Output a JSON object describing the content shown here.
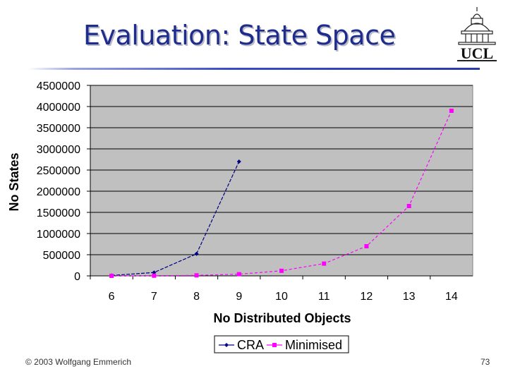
{
  "slide": {
    "title": "Evaluation: State Space",
    "footer_left": "© 2003 Wolfgang Emmerich",
    "page_number": "73",
    "logo_text": "UCL"
  },
  "colors": {
    "title": "#1e2d8c",
    "plot_bg": "#c0c0c0",
    "cra": "#000080",
    "minimised": "#ff00ff"
  },
  "chart_data": {
    "type": "line",
    "title": "",
    "xlabel": "No Distributed Objects",
    "ylabel": "No States",
    "categories": [
      "6",
      "7",
      "8",
      "9",
      "10",
      "11",
      "12",
      "13",
      "14"
    ],
    "ylim": [
      0,
      4500000
    ],
    "yticks": [
      0,
      500000,
      1000000,
      1500000,
      2000000,
      2500000,
      3000000,
      3500000,
      4000000,
      4500000
    ],
    "yticks_labels": [
      "0",
      "500000",
      "1000000",
      "1500000",
      "2000000",
      "2500000",
      "3000000",
      "3500000",
      "4000000",
      "4500000"
    ],
    "grid": true,
    "legend_position": "bottom",
    "series": [
      {
        "name": "CRA",
        "values": [
          10000,
          80000,
          520000,
          2700000,
          null,
          null,
          null,
          null,
          null
        ]
      },
      {
        "name": "Minimised",
        "values": [
          1000,
          4000,
          12000,
          40000,
          120000,
          290000,
          700000,
          1650000,
          3900000
        ]
      }
    ]
  }
}
